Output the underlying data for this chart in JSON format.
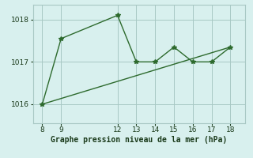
{
  "line1_x": [
    8,
    9,
    12,
    13,
    14,
    15,
    16,
    17,
    18
  ],
  "line1_y": [
    1016.0,
    1017.55,
    1018.1,
    1017.0,
    1017.0,
    1017.35,
    1017.0,
    1017.0,
    1017.35
  ],
  "line2_x": [
    8,
    18
  ],
  "line2_y": [
    1016.0,
    1017.35
  ],
  "line_color": "#2d6a2d",
  "marker": "*",
  "bg_color": "#d8f0ee",
  "grid_color": "#a8c8c4",
  "xlabel": "Graphe pression niveau de la mer (hPa)",
  "xlim": [
    7.5,
    18.8
  ],
  "ylim": [
    1015.55,
    1018.35
  ],
  "yticks": [
    1016,
    1017,
    1018
  ],
  "xticks": [
    8,
    9,
    12,
    13,
    14,
    15,
    16,
    17,
    18
  ],
  "xlabel_fontsize": 7,
  "tick_fontsize": 6.5,
  "line_width": 1.0,
  "marker_size": 4
}
